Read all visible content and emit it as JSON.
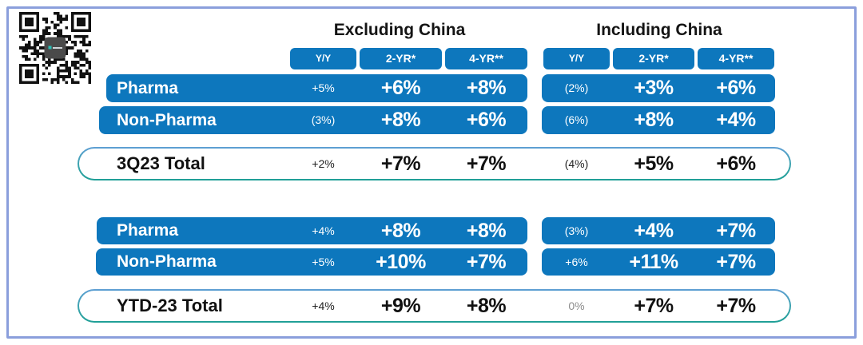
{
  "colors": {
    "bar_blue": "#0d77bd",
    "frame_border": "#8b9fdc",
    "total_border_gradient_top": "#5f9fd4",
    "total_border_gradient_bottom": "#1f9f96",
    "muted_value": "#8d8d8d"
  },
  "icons": {
    "qr_code": "qr-code"
  },
  "chart_data": {
    "type": "table",
    "column_groups": [
      "Excluding China",
      "Including China"
    ],
    "columns": [
      "Y/Y",
      "2-YR*",
      "4-YR**",
      "Y/Y",
      "2-YR*",
      "4-YR**"
    ],
    "rows": [
      {
        "kind": "data",
        "label": "Pharma",
        "values": [
          "+5%",
          "+6%",
          "+8%",
          "(2%)",
          "+3%",
          "+6%"
        ]
      },
      {
        "kind": "data",
        "label": "Non-Pharma",
        "values": [
          "(3%)",
          "+8%",
          "+6%",
          "(6%)",
          "+8%",
          "+4%"
        ]
      },
      {
        "kind": "total",
        "label": "3Q23 Total",
        "values": [
          "+2%",
          "+7%",
          "+7%",
          "(4%)",
          "+5%",
          "+6%"
        ]
      },
      {
        "kind": "data",
        "label": "Pharma",
        "values": [
          "+4%",
          "+8%",
          "+8%",
          "(3%)",
          "+4%",
          "+7%"
        ]
      },
      {
        "kind": "data",
        "label": "Non-Pharma",
        "values": [
          "+5%",
          "+10%",
          "+7%",
          "+6%",
          "+11%",
          "+7%"
        ]
      },
      {
        "kind": "total",
        "label": "YTD-23 Total",
        "values": [
          "+4%",
          "+9%",
          "+8%",
          "0%",
          "+7%",
          "+7%"
        ]
      }
    ]
  }
}
